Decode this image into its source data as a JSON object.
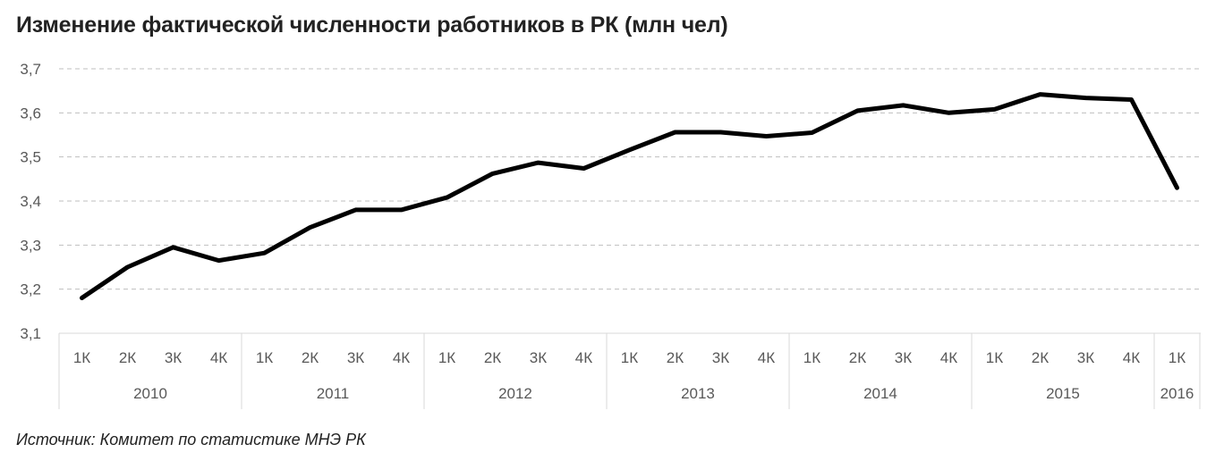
{
  "title": "Изменение фактической численности работников в РК (млн чел)",
  "source": "Источник: Комитет по статистике МНЭ РК",
  "colors": {
    "line": "#000000",
    "grid": "#bfbfbf",
    "tick": "#595959",
    "axis": "#d9d9d9"
  },
  "chart_data": {
    "type": "line",
    "title": "Изменение фактической численности работников в РК (млн чел)",
    "ylim": [
      3.1,
      3.7
    ],
    "yticks": [
      3.1,
      3.2,
      3.3,
      3.4,
      3.5,
      3.6,
      3.7
    ],
    "ytick_labels": [
      "3,1",
      "3,2",
      "3,3",
      "3,4",
      "3,5",
      "3,6",
      "3,7"
    ],
    "grid": true,
    "legend": "none",
    "categories": [
      "1К",
      "2К",
      "3К",
      "4К",
      "1К",
      "2К",
      "3К",
      "4К",
      "1К",
      "2К",
      "3К",
      "4К",
      "1К",
      "2К",
      "3К",
      "4К",
      "1К",
      "2К",
      "3К",
      "4К",
      "1К",
      "2К",
      "3К",
      "4К",
      "1К"
    ],
    "groups": [
      {
        "label": "2010",
        "count": 4
      },
      {
        "label": "2011",
        "count": 4
      },
      {
        "label": "2012",
        "count": 4
      },
      {
        "label": "2013",
        "count": 4
      },
      {
        "label": "2014",
        "count": 4
      },
      {
        "label": "2015",
        "count": 4
      },
      {
        "label": "2016",
        "count": 1
      }
    ],
    "values": [
      3.18,
      3.25,
      3.295,
      3.265,
      3.282,
      3.34,
      3.38,
      3.38,
      3.408,
      3.462,
      3.487,
      3.474,
      3.516,
      3.556,
      3.556,
      3.547,
      3.555,
      3.605,
      3.617,
      3.6,
      3.608,
      3.642,
      3.634,
      3.63,
      3.43
    ]
  }
}
